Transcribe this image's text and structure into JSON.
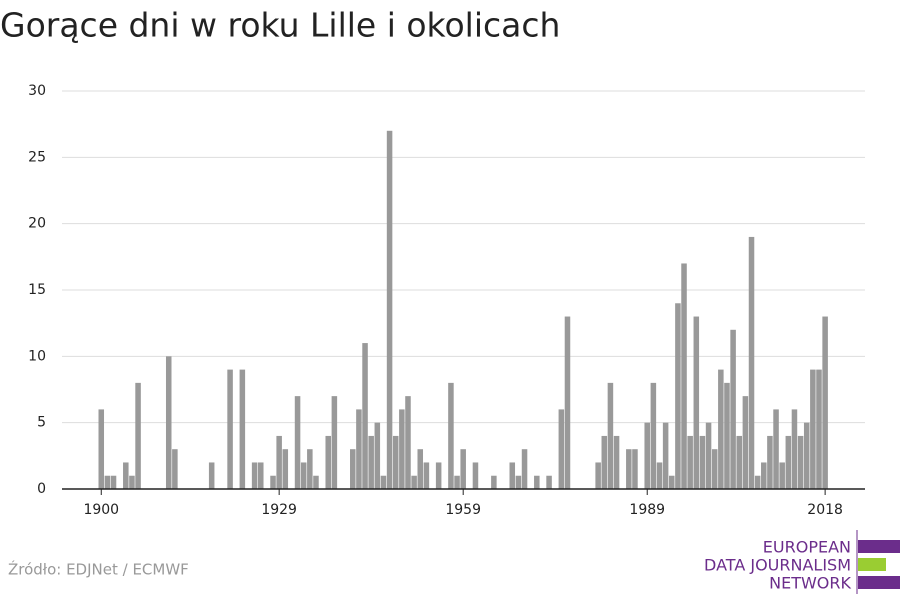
{
  "chart_data": {
    "type": "bar",
    "title": "Gorące dni w roku Lille i okolicach",
    "source": "Źródło: EDJNet / ECMWF",
    "logo": [
      "EUROPEAN",
      "DATA JOURNALISM",
      "NETWORK"
    ],
    "x": [
      1900,
      1901,
      1902,
      1903,
      1904,
      1905,
      1906,
      1907,
      1908,
      1909,
      1910,
      1911,
      1912,
      1913,
      1914,
      1915,
      1916,
      1917,
      1918,
      1919,
      1920,
      1921,
      1922,
      1923,
      1924,
      1925,
      1926,
      1927,
      1928,
      1929,
      1930,
      1931,
      1932,
      1933,
      1934,
      1935,
      1936,
      1937,
      1938,
      1939,
      1940,
      1941,
      1942,
      1943,
      1944,
      1945,
      1946,
      1947,
      1948,
      1949,
      1950,
      1951,
      1952,
      1953,
      1954,
      1955,
      1956,
      1957,
      1958,
      1959,
      1960,
      1961,
      1962,
      1963,
      1964,
      1965,
      1966,
      1967,
      1968,
      1969,
      1970,
      1971,
      1972,
      1973,
      1974,
      1975,
      1976,
      1977,
      1978,
      1979,
      1980,
      1981,
      1982,
      1983,
      1984,
      1985,
      1986,
      1987,
      1988,
      1989,
      1990,
      1991,
      1992,
      1993,
      1994,
      1995,
      1996,
      1997,
      1998,
      1999,
      2000,
      2001,
      2002,
      2003,
      2004,
      2005,
      2006,
      2007,
      2008,
      2009,
      2010,
      2011,
      2012,
      2013,
      2014,
      2015,
      2016,
      2017,
      2018
    ],
    "values": [
      6,
      1,
      1,
      0,
      2,
      1,
      8,
      0,
      0,
      0,
      0,
      10,
      3,
      0,
      0,
      0,
      0,
      0,
      2,
      0,
      0,
      9,
      0,
      9,
      0,
      2,
      2,
      0,
      1,
      4,
      3,
      0,
      7,
      2,
      3,
      1,
      0,
      4,
      7,
      0,
      0,
      3,
      6,
      11,
      4,
      5,
      1,
      27,
      4,
      6,
      7,
      1,
      3,
      2,
      0,
      2,
      0,
      8,
      1,
      3,
      0,
      2,
      0,
      0,
      1,
      0,
      0,
      2,
      1,
      3,
      0,
      1,
      0,
      1,
      0,
      6,
      13,
      0,
      0,
      0,
      0,
      2,
      4,
      8,
      4,
      0,
      3,
      3,
      0,
      5,
      8,
      2,
      5,
      1,
      14,
      17,
      4,
      13,
      4,
      5,
      3,
      9,
      8,
      12,
      4,
      7,
      19,
      1,
      2,
      4,
      6,
      2,
      4,
      6,
      4,
      5,
      9,
      9,
      13
    ],
    "color": "#999999",
    "xlim": [
      1893.6,
      2024.5
    ],
    "xticks": [
      1900,
      1929,
      1959,
      1989,
      2018
    ],
    "ylim": [
      0,
      30
    ],
    "yticks": [
      0,
      5,
      10,
      15,
      20,
      25,
      30
    ],
    "grid": true
  }
}
